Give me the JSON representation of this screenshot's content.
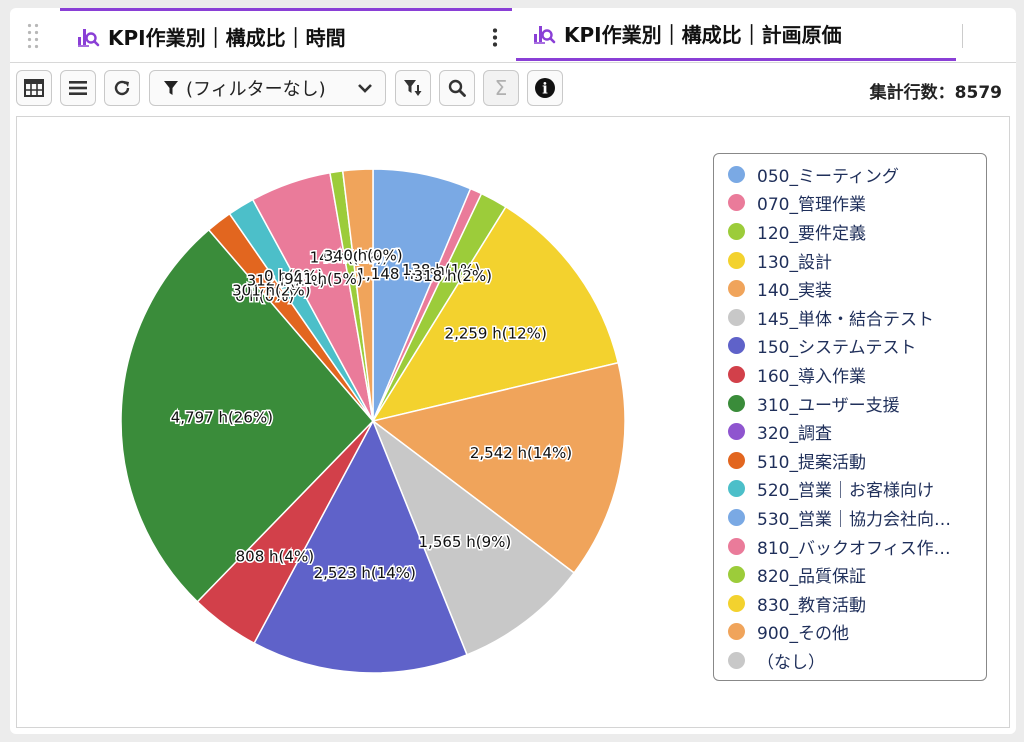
{
  "tabs": [
    {
      "label": "KPI作業別｜構成比｜時間",
      "active": true
    },
    {
      "label": "KPI作業別｜構成比｜計画原価",
      "active": false
    }
  ],
  "toolbar": {
    "filter_label": "(フィルターなし)",
    "row_count_label": "集計行数：8579",
    "sigma_glyph": "Σ",
    "info_glyph": "i"
  },
  "colors": {
    "accent": "#8a3fd6"
  },
  "chart_data": {
    "type": "pie",
    "title": "",
    "series": [
      {
        "name": "050_ミーティング",
        "value": 1148,
        "label": "1,148 h(6%)",
        "color": "#7aa9e4"
      },
      {
        "name": "070_管理作業",
        "value": 138,
        "label": "138 h(1%)",
        "color": "#ea7b9a"
      },
      {
        "name": "120_要件定義",
        "value": 318,
        "label": "318 h(2%)",
        "color": "#9ccc3a"
      },
      {
        "name": "130_設計",
        "value": 2259,
        "label": "2,259 h(12%)",
        "color": "#f3d22e"
      },
      {
        "name": "140_実装",
        "value": 2542,
        "label": "2,542 h(14%)",
        "color": "#f0a45b"
      },
      {
        "name": "145_単体・結合テスト",
        "value": 1565,
        "label": "1,565 h(9%)",
        "color": "#c8c8c8"
      },
      {
        "name": "150_システムテスト",
        "value": 2523,
        "label": "2,523 h(14%)",
        "color": "#5f62c9"
      },
      {
        "name": "160_導入作業",
        "value": 808,
        "label": "808 h(4%)",
        "color": "#d2404a"
      },
      {
        "name": "310_ユーザー支援",
        "value": 4797,
        "label": "4,797 h(26%)",
        "color": "#3a8c3a"
      },
      {
        "name": "320_調査",
        "value": 0,
        "label": "0 h(0%)",
        "color": "#8f55cf"
      },
      {
        "name": "510_提案活動",
        "value": 301,
        "label": "301 h(2%)",
        "color": "#e2661f"
      },
      {
        "name": "520_営業｜お客様向け",
        "value": 312,
        "label": "312 h(2%)",
        "color": "#4cbfc9"
      },
      {
        "name": "530_営業｜協力会社向…",
        "value": 0,
        "label": "0 h(0%)",
        "color": "#7aa9e4"
      },
      {
        "name": "810_バックオフィス作…",
        "value": 941,
        "label": "941 h(5%)",
        "color": "#ea7b9a"
      },
      {
        "name": "820_品質保証",
        "value": 148,
        "label": "148 h(1%)",
        "color": "#9ccc3a"
      },
      {
        "name": "830_教育活動",
        "value": 0,
        "label": "0 h(0%)",
        "color": "#f3d22e"
      },
      {
        "name": "900_その他",
        "value": 348,
        "label": "348 h(2%)",
        "color": "#f0a45b"
      },
      {
        "name": "（なし）",
        "value": 0,
        "label": "0 h(0%)",
        "color": "#c8c8c8"
      }
    ],
    "legend_position": "right"
  }
}
